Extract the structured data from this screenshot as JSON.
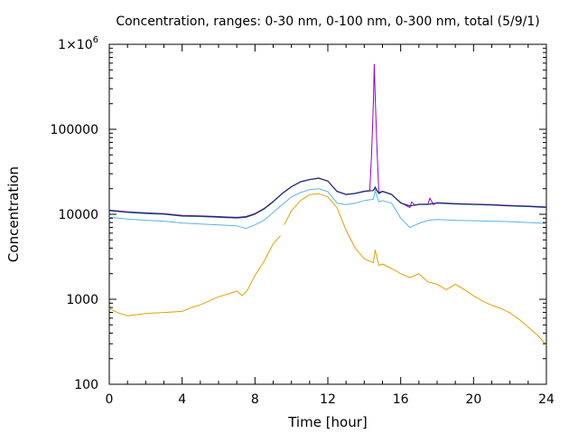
{
  "chart_data": {
    "type": "line",
    "title": "Concentration, ranges: 0-30 nm, 0-100 nm, 0-300 nm, total (5/9/1)",
    "xlabel": "Time [hour]",
    "ylabel": "Concentration",
    "xlim": [
      0,
      24
    ],
    "ylim": [
      100,
      1000000
    ],
    "yscale": "log",
    "grid": false,
    "legend": "none",
    "x_ticks": [
      0,
      4,
      8,
      12,
      16,
      20,
      24
    ],
    "x_tick_labels": [
      "0",
      "4",
      "8",
      "12",
      "16",
      "20",
      "24"
    ],
    "y_ticks": [
      100,
      1000,
      10000,
      100000,
      1000000
    ],
    "y_tick_labels": [
      "100",
      "1000",
      "10000",
      "100000",
      "1×10"
    ],
    "y_top_exponent": "6",
    "series": [
      {
        "color": "#e69f00",
        "points": [
          [
            0,
            780
          ],
          [
            0.5,
            690
          ],
          [
            1,
            640
          ],
          [
            1.5,
            660
          ],
          [
            2,
            680
          ],
          [
            2.5,
            690
          ],
          [
            3,
            700
          ],
          [
            3.5,
            710
          ],
          [
            4,
            720
          ],
          [
            4.5,
            800
          ],
          [
            5,
            860
          ],
          [
            5.5,
            960
          ],
          [
            6,
            1070
          ],
          [
            6.5,
            1150
          ],
          [
            7,
            1250
          ],
          [
            7.3,
            1100
          ],
          [
            7.6,
            1300
          ],
          [
            8,
            1900
          ],
          [
            8.5,
            2800
          ],
          [
            9,
            4500
          ],
          [
            9.4,
            5600
          ],
          [
            null,
            null
          ],
          [
            9.6,
            7500
          ],
          [
            10,
            11000
          ],
          [
            10.5,
            14500
          ],
          [
            11,
            17000
          ],
          [
            11.5,
            17500
          ],
          [
            12,
            16000
          ],
          [
            12.5,
            12000
          ],
          [
            13,
            6500
          ],
          [
            13.5,
            4000
          ],
          [
            14,
            3000
          ],
          [
            14.5,
            2700
          ],
          [
            14.6,
            3800
          ],
          [
            14.8,
            2500
          ],
          [
            15,
            2600
          ],
          [
            15.5,
            2300
          ],
          [
            16,
            2000
          ],
          [
            16.5,
            1800
          ],
          [
            17,
            2000
          ],
          [
            17.5,
            1600
          ],
          [
            18,
            1500
          ],
          [
            18.5,
            1300
          ],
          [
            19,
            1500
          ],
          [
            19.5,
            1300
          ],
          [
            20,
            1100
          ],
          [
            20.5,
            950
          ],
          [
            21,
            850
          ],
          [
            21.5,
            780
          ],
          [
            22,
            690
          ],
          [
            22.5,
            580
          ],
          [
            23,
            470
          ],
          [
            23.5,
            380
          ],
          [
            24,
            290
          ]
        ]
      },
      {
        "color": "#56b4e9",
        "points": [
          [
            0,
            9200
          ],
          [
            1,
            8800
          ],
          [
            2,
            8500
          ],
          [
            3,
            8300
          ],
          [
            4,
            7900
          ],
          [
            5,
            7700
          ],
          [
            6,
            7500
          ],
          [
            7,
            7300
          ],
          [
            7.5,
            6800
          ],
          [
            8,
            7500
          ],
          [
            8.5,
            8500
          ],
          [
            9,
            10500
          ],
          [
            9.5,
            13000
          ],
          [
            10,
            16000
          ],
          [
            10.5,
            18000
          ],
          [
            11,
            19500
          ],
          [
            11.5,
            20000
          ],
          [
            12,
            18500
          ],
          [
            12.5,
            13500
          ],
          [
            13,
            13000
          ],
          [
            13.5,
            13500
          ],
          [
            14,
            14500
          ],
          [
            14.5,
            15000
          ],
          [
            14.6,
            19000
          ],
          [
            14.8,
            14000
          ],
          [
            15,
            14500
          ],
          [
            15.5,
            13500
          ],
          [
            16,
            9000
          ],
          [
            16.5,
            7000
          ],
          [
            17,
            7800
          ],
          [
            17.5,
            8500
          ],
          [
            18,
            8700
          ],
          [
            19,
            8500
          ],
          [
            20,
            8400
          ],
          [
            21,
            8300
          ],
          [
            22,
            8200
          ],
          [
            23,
            8000
          ],
          [
            24,
            7800
          ]
        ]
      },
      {
        "color": "#009e73",
        "points": [
          [
            0,
            11000
          ],
          [
            1,
            10500
          ],
          [
            2,
            10200
          ],
          [
            3,
            10000
          ],
          [
            4,
            9500
          ],
          [
            5,
            9400
          ],
          [
            6,
            9200
          ],
          [
            7,
            9000
          ],
          [
            7.5,
            9200
          ],
          [
            8,
            10000
          ],
          [
            8.5,
            11500
          ],
          [
            9,
            14000
          ],
          [
            9.5,
            17500
          ],
          [
            10,
            21000
          ],
          [
            10.5,
            24000
          ],
          [
            11,
            25500
          ],
          [
            11.5,
            26500
          ],
          [
            12,
            24500
          ],
          [
            12.5,
            18500
          ],
          [
            13,
            17000
          ],
          [
            13.5,
            17500
          ],
          [
            14,
            18500
          ],
          [
            14.5,
            19000
          ],
          [
            14.6,
            20000
          ],
          [
            14.8,
            17500
          ],
          [
            15,
            18500
          ],
          [
            15.5,
            17000
          ],
          [
            16,
            13500
          ],
          [
            16.5,
            12500
          ],
          [
            17,
            13000
          ],
          [
            17.5,
            13000
          ],
          [
            18,
            13500
          ],
          [
            19,
            13200
          ],
          [
            20,
            13000
          ],
          [
            21,
            12800
          ],
          [
            22,
            12500
          ],
          [
            23,
            12300
          ],
          [
            24,
            12000
          ]
        ]
      },
      {
        "color": "#9400d3",
        "points": [
          [
            0,
            11200
          ],
          [
            1,
            10700
          ],
          [
            2,
            10400
          ],
          [
            3,
            10200
          ],
          [
            4,
            9700
          ],
          [
            5,
            9600
          ],
          [
            6,
            9400
          ],
          [
            7,
            9200
          ],
          [
            7.5,
            9400
          ],
          [
            8,
            10200
          ],
          [
            8.5,
            11700
          ],
          [
            9,
            14200
          ],
          [
            9.5,
            17700
          ],
          [
            10,
            21200
          ],
          [
            10.5,
            24200
          ],
          [
            11,
            25700
          ],
          [
            11.5,
            26700
          ],
          [
            12,
            24700
          ],
          [
            12.5,
            18700
          ],
          [
            13,
            17200
          ],
          [
            13.5,
            17700
          ],
          [
            14,
            18700
          ],
          [
            14.3,
            19000
          ],
          [
            14.4,
            50000
          ],
          [
            14.5,
            200000
          ],
          [
            14.55,
            580000
          ],
          [
            14.6,
            250000
          ],
          [
            14.7,
            60000
          ],
          [
            14.8,
            18000
          ],
          [
            15,
            18700
          ],
          [
            15.5,
            17200
          ],
          [
            16,
            13700
          ],
          [
            16.5,
            12000
          ],
          [
            16.6,
            14000
          ],
          [
            16.8,
            12700
          ],
          [
            17,
            13200
          ],
          [
            17.5,
            13200
          ],
          [
            17.6,
            15500
          ],
          [
            17.8,
            13000
          ],
          [
            18,
            13700
          ],
          [
            19,
            13400
          ],
          [
            20,
            13200
          ],
          [
            21,
            13000
          ],
          [
            22,
            12700
          ],
          [
            23,
            12500
          ],
          [
            24,
            12200
          ]
        ]
      },
      {
        "color": "#1f2a6b",
        "points": [
          [
            0,
            11100
          ],
          [
            1,
            10600
          ],
          [
            2,
            10300
          ],
          [
            3,
            10100
          ],
          [
            4,
            9600
          ],
          [
            5,
            9500
          ],
          [
            6,
            9300
          ],
          [
            7,
            9100
          ],
          [
            7.5,
            9300
          ],
          [
            8,
            10100
          ],
          [
            8.5,
            11600
          ],
          [
            9,
            14100
          ],
          [
            9.5,
            17600
          ],
          [
            10,
            21100
          ],
          [
            10.5,
            24100
          ],
          [
            11,
            25600
          ],
          [
            11.5,
            26600
          ],
          [
            12,
            24600
          ],
          [
            12.5,
            18600
          ],
          [
            13,
            17100
          ],
          [
            13.5,
            17600
          ],
          [
            14,
            18600
          ],
          [
            14.5,
            19100
          ],
          [
            14.6,
            21000
          ],
          [
            14.8,
            17600
          ],
          [
            15,
            18600
          ],
          [
            15.5,
            17100
          ],
          [
            16,
            13600
          ],
          [
            16.5,
            12600
          ],
          [
            17,
            13100
          ],
          [
            17.5,
            13100
          ],
          [
            18,
            13600
          ],
          [
            19,
            13300
          ],
          [
            20,
            13100
          ],
          [
            21,
            12900
          ],
          [
            22,
            12600
          ],
          [
            23,
            12400
          ],
          [
            24,
            12100
          ]
        ]
      }
    ]
  }
}
